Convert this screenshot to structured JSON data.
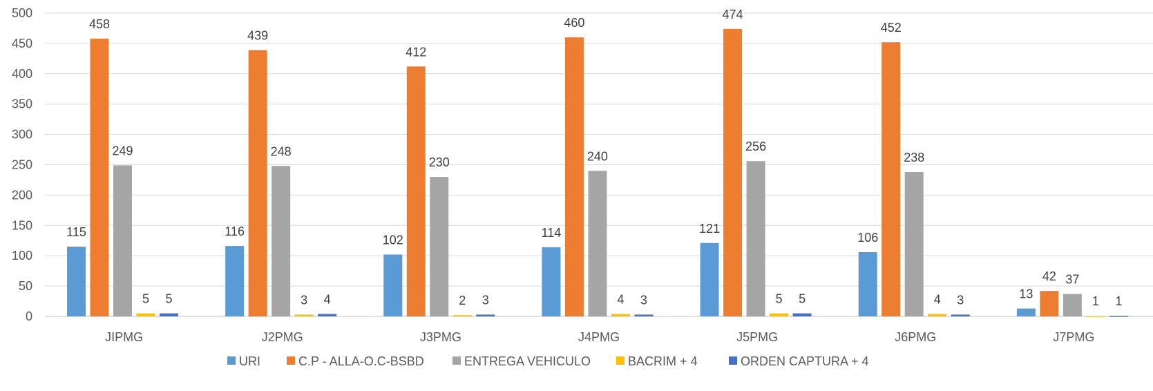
{
  "chart_data": {
    "type": "bar",
    "categories": [
      "JIPMG",
      "J2PMG",
      "J3PMG",
      "J4PMG",
      "J5PMG",
      "J6PMG",
      "J7PMG"
    ],
    "series": [
      {
        "name": "URI",
        "color": "#5b9bd5",
        "values": [
          115,
          116,
          102,
          114,
          121,
          106,
          13
        ]
      },
      {
        "name": "C.P - ALLA-O.C-BSBD",
        "color": "#ed7d31",
        "values": [
          458,
          439,
          412,
          460,
          474,
          452,
          42
        ]
      },
      {
        "name": "ENTREGA VEHICULO",
        "color": "#a5a5a5",
        "values": [
          249,
          248,
          230,
          240,
          256,
          238,
          37
        ]
      },
      {
        "name": "BACRIM + 4",
        "color": "#ffc000",
        "values": [
          5,
          3,
          2,
          4,
          5,
          4,
          1
        ]
      },
      {
        "name": "ORDEN CAPTURA + 4",
        "color": "#4472c4",
        "values": [
          5,
          4,
          3,
          3,
          5,
          3,
          1
        ]
      }
    ],
    "title": "",
    "xlabel": "",
    "ylabel": "",
    "ylim": [
      0,
      500
    ],
    "yticks": [
      0,
      50,
      100,
      150,
      200,
      250,
      300,
      350,
      400,
      450,
      500
    ],
    "grid": true,
    "legend": "bottom",
    "data_labels": true
  }
}
